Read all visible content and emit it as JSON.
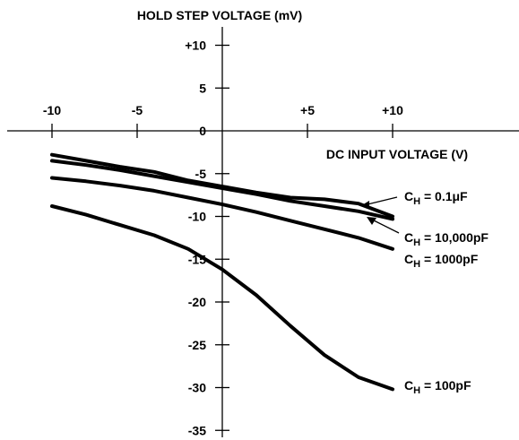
{
  "chart_data": {
    "type": "line",
    "title": "HOLD STEP VOLTAGE (mV)",
    "xlabel": "DC INPUT VOLTAGE (V)",
    "ylabel": "",
    "xlim": [
      -10.5,
      10.5
    ],
    "ylim": [
      -36,
      12
    ],
    "x_ticks": [
      {
        "value": -10,
        "label": "-10"
      },
      {
        "value": -5,
        "label": "-5"
      },
      {
        "value": 5,
        "label": "+5"
      },
      {
        "value": 10,
        "label": "+10"
      }
    ],
    "y_ticks": [
      {
        "value": 10,
        "label": "+10"
      },
      {
        "value": 5,
        "label": "5"
      },
      {
        "value": 0,
        "label": "0"
      },
      {
        "value": -5,
        "label": "-5"
      },
      {
        "value": -10,
        "label": "-10"
      },
      {
        "value": -15,
        "label": "-15"
      },
      {
        "value": -20,
        "label": "-20"
      },
      {
        "value": -25,
        "label": "-25"
      },
      {
        "value": -30,
        "label": "-30"
      },
      {
        "value": -35,
        "label": "-35"
      }
    ],
    "series": [
      {
        "name": "0.1μF",
        "label_prefix": "C",
        "label_sub": "H",
        "label_value": " = 0.1μF",
        "x": [
          -10,
          -8,
          -6,
          -4,
          -2,
          0,
          2,
          4,
          6,
          8,
          10
        ],
        "y": [
          -2.8,
          -3.5,
          -4.2,
          -4.8,
          -5.8,
          -6.5,
          -7.2,
          -7.8,
          -8.0,
          -8.5,
          -10.0
        ]
      },
      {
        "name": "10,000pF",
        "label_prefix": "C",
        "label_sub": "H",
        "label_value": " = 10,000pF",
        "x": [
          -10,
          -8,
          -6,
          -4,
          -2,
          0,
          2,
          4,
          6,
          8,
          10
        ],
        "y": [
          -3.5,
          -4.0,
          -4.6,
          -5.3,
          -6.0,
          -6.7,
          -7.4,
          -8.2,
          -8.8,
          -9.4,
          -10.3
        ]
      },
      {
        "name": "1000pF",
        "label_prefix": "C",
        "label_sub": "H",
        "label_value": " = 1000pF",
        "x": [
          -10,
          -8,
          -6,
          -4,
          -2,
          0,
          2,
          4,
          6,
          8,
          10
        ],
        "y": [
          -5.5,
          -5.9,
          -6.4,
          -7.0,
          -7.8,
          -8.6,
          -9.5,
          -10.5,
          -11.5,
          -12.5,
          -13.8
        ]
      },
      {
        "name": "100pF",
        "label_prefix": "C",
        "label_sub": "H",
        "label_value": " = 100pF",
        "x": [
          -10,
          -8,
          -6,
          -4,
          -2,
          0,
          2,
          4,
          6,
          8,
          10
        ],
        "y": [
          -8.8,
          -9.8,
          -11.0,
          -12.2,
          -13.8,
          -16.2,
          -19.2,
          -22.8,
          -26.2,
          -28.8,
          -30.2
        ]
      }
    ],
    "line_color": "#000000",
    "background": "#ffffff"
  }
}
